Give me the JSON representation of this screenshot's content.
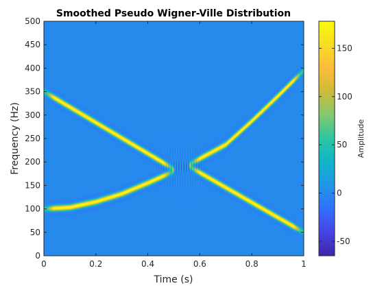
{
  "chart_data": {
    "type": "heatmap",
    "title": "Smoothed Pseudo Wigner-Ville Distribution",
    "xlabel": "Time (s)",
    "ylabel": "Frequency (Hz)",
    "xlim": [
      0,
      1
    ],
    "ylim": [
      0,
      500
    ],
    "x_ticks": [
      {
        "value": 0,
        "label": "0"
      },
      {
        "value": 0.2,
        "label": "0.2"
      },
      {
        "value": 0.4,
        "label": "0.4"
      },
      {
        "value": 0.6,
        "label": "0.6"
      },
      {
        "value": 0.8,
        "label": "0.8"
      },
      {
        "value": 1,
        "label": "1"
      }
    ],
    "y_ticks": [
      {
        "value": 0,
        "label": "0"
      },
      {
        "value": 50,
        "label": "50"
      },
      {
        "value": 100,
        "label": "100"
      },
      {
        "value": 150,
        "label": "150"
      },
      {
        "value": 200,
        "label": "200"
      },
      {
        "value": 250,
        "label": "250"
      },
      {
        "value": 300,
        "label": "300"
      },
      {
        "value": 350,
        "label": "350"
      },
      {
        "value": 400,
        "label": "400"
      },
      {
        "value": 450,
        "label": "450"
      },
      {
        "value": 500,
        "label": "500"
      }
    ],
    "colorbar": {
      "label": "Amplitude",
      "range": [
        -65,
        178
      ],
      "ticks": [
        {
          "value": -50,
          "label": "-50"
        },
        {
          "value": 0,
          "label": "0"
        },
        {
          "value": 50,
          "label": "50"
        },
        {
          "value": 100,
          "label": "100"
        },
        {
          "value": 150,
          "label": "150"
        }
      ],
      "colormap": "parula",
      "colors": [
        "#3e26a8",
        "#4744e6",
        "#3170fc",
        "#2196e6",
        "#11b4c9",
        "#2bc6a2",
        "#83c96e",
        "#ceba3a",
        "#fdbc3b",
        "#f6dd23",
        "#f9fb0e"
      ]
    },
    "background_value": 0,
    "components": [
      {
        "shape": "linear-chirp",
        "points": [
          [
            0.0,
            350
          ],
          [
            0.5,
            185
          ]
        ],
        "peak": 175
      },
      {
        "shape": "quadratic-chirp",
        "points": [
          [
            0.0,
            100
          ],
          [
            0.1,
            103
          ],
          [
            0.2,
            115
          ],
          [
            0.3,
            132
          ],
          [
            0.4,
            155
          ],
          [
            0.5,
            180
          ]
        ],
        "peak": 170
      },
      {
        "shape": "linear-chirp",
        "points": [
          [
            0.56,
            190
          ],
          [
            1.0,
            50
          ]
        ],
        "peak": 175
      },
      {
        "shape": "quadratic-chirp",
        "points": [
          [
            0.56,
            195
          ],
          [
            0.7,
            237
          ],
          [
            0.8,
            287
          ],
          [
            0.9,
            340
          ],
          [
            1.0,
            395
          ]
        ],
        "peak": 170
      }
    ],
    "interference": {
      "t_range": [
        0.42,
        0.64
      ],
      "f_range": [
        140,
        240
      ],
      "min": -60,
      "max": 80
    },
    "grid": false
  }
}
